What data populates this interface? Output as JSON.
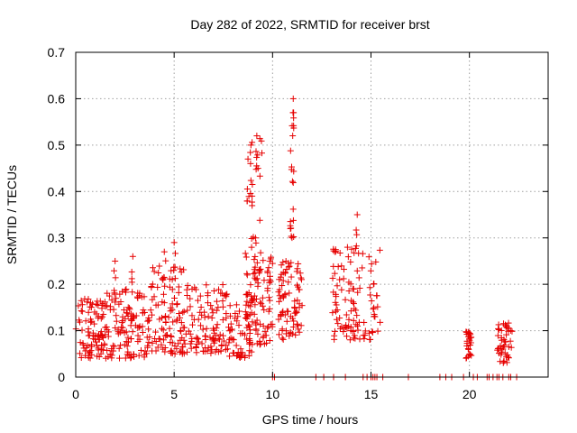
{
  "chart_data": {
    "type": "scatter",
    "title": "Day 282 of 2022, SRMTID for receiver brst",
    "xlabel": "GPS time / hours",
    "ylabel": "SRMTID / TECUs",
    "xlim": [
      0,
      24
    ],
    "ylim": [
      0,
      0.7
    ],
    "x_ticks": [
      0,
      5,
      10,
      15,
      20
    ],
    "x_tick_labels": [
      "0",
      "5",
      "10",
      "15",
      "20"
    ],
    "y_ticks": [
      0,
      0.1,
      0.2,
      0.3,
      0.4,
      0.5,
      0.6,
      0.7
    ],
    "y_tick_labels": [
      "0",
      "0.1",
      "0.2",
      "0.3",
      "0.4",
      "0.5",
      "0.6",
      "0.7"
    ],
    "grid": true,
    "marker": "+",
    "marker_color": "#e60000",
    "series": [
      {
        "name": "SRMTID",
        "approx_segments": [
          {
            "x_start": 0.0,
            "x_end": 1.5,
            "y_low": 0.04,
            "y_high": 0.17,
            "count": 90
          },
          {
            "x_start": 1.5,
            "x_end": 3.5,
            "y_low": 0.04,
            "y_high": 0.19,
            "count": 110
          },
          {
            "x_start": 3.5,
            "x_end": 5.5,
            "y_low": 0.05,
            "y_high": 0.24,
            "count": 110
          },
          {
            "x_start": 5.5,
            "x_end": 7.5,
            "y_low": 0.05,
            "y_high": 0.2,
            "count": 100
          },
          {
            "x_start": 7.5,
            "x_end": 9.0,
            "y_low": 0.04,
            "y_high": 0.18,
            "count": 80
          },
          {
            "x_start": 8.6,
            "x_end": 9.5,
            "y_low": 0.15,
            "y_high": 0.53,
            "count": 45
          },
          {
            "x_start": 9.0,
            "x_end": 10.0,
            "y_low": 0.07,
            "y_high": 0.26,
            "count": 60
          },
          {
            "x_start": 10.3,
            "x_end": 11.5,
            "y_low": 0.08,
            "y_high": 0.25,
            "count": 80
          },
          {
            "x_start": 10.9,
            "x_end": 11.1,
            "y_low": 0.3,
            "y_high": 0.6,
            "count": 18
          },
          {
            "x_start": 13.0,
            "x_end": 15.5,
            "y_low": 0.08,
            "y_high": 0.28,
            "count": 110
          },
          {
            "x_start": 19.8,
            "x_end": 20.1,
            "y_low": 0.04,
            "y_high": 0.1,
            "count": 25
          },
          {
            "x_start": 21.4,
            "x_end": 22.2,
            "y_low": 0.03,
            "y_high": 0.12,
            "count": 45
          }
        ],
        "peaks": [
          {
            "x": 8.9,
            "y": 0.5
          },
          {
            "x": 9.2,
            "y": 0.52
          },
          {
            "x": 11.05,
            "y": 0.6
          },
          {
            "x": 14.3,
            "y": 0.35
          },
          {
            "x": 4.5,
            "y": 0.27
          },
          {
            "x": 5.0,
            "y": 0.29
          },
          {
            "x": 2.0,
            "y": 0.25
          },
          {
            "x": 2.9,
            "y": 0.26
          }
        ],
        "zero_points_x": [
          10.0,
          10.1,
          12.2,
          12.6,
          13.1,
          13.7,
          14.6,
          14.8,
          15.0,
          15.1,
          15.2,
          15.3,
          15.6,
          16.9,
          18.5,
          18.8,
          19.1,
          19.7,
          20.2,
          20.4,
          20.9,
          21.0,
          21.2,
          21.4,
          21.5,
          21.7,
          22.0,
          22.1,
          22.4
        ]
      }
    ]
  }
}
